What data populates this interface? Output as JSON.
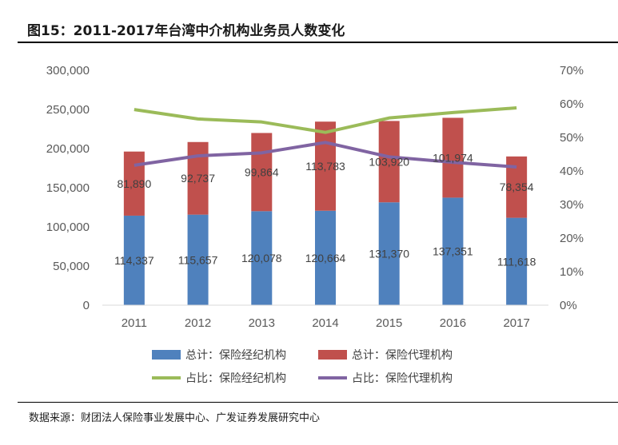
{
  "title": "图15：2011-2017年台湾中介机构业务员人数变化",
  "source": "数据来源：财团法人保险事业发展中心、广发证券发展研究中心",
  "chart_data": {
    "type": "bar+line",
    "categories": [
      "2011",
      "2012",
      "2013",
      "2014",
      "2015",
      "2016",
      "2017"
    ],
    "bar_series": [
      {
        "name": "总计：保险经纪机构",
        "color": "#4f81bd",
        "values": [
          114337,
          115657,
          120078,
          120664,
          131370,
          137351,
          111618
        ],
        "labels": [
          "114,337",
          "115,657",
          "120,078",
          "120,664",
          "131,370",
          "137,351",
          "111,618"
        ]
      },
      {
        "name": "总计：保险代理机构",
        "color": "#c0504d",
        "values": [
          81890,
          92737,
          99864,
          113783,
          103920,
          101974,
          78354
        ],
        "labels": [
          "81,890",
          "92,737",
          "99,864",
          "113,783",
          "103,920",
          "101,974",
          "78,354"
        ]
      }
    ],
    "line_series": [
      {
        "name": "占比：保险经纪机构",
        "color": "#9bbb59",
        "values": [
          58.3,
          55.5,
          54.6,
          51.5,
          55.8,
          57.4,
          58.8
        ]
      },
      {
        "name": "占比：保险代理机构",
        "color": "#8064a2",
        "values": [
          41.7,
          44.5,
          45.4,
          48.5,
          44.2,
          42.6,
          41.2
        ]
      }
    ],
    "stacked": true,
    "y_left": {
      "min": 0,
      "max": 300000,
      "ticks": [
        "0",
        "50,000",
        "100,000",
        "150,000",
        "200,000",
        "250,000",
        "300,000"
      ]
    },
    "y_right": {
      "min": 0,
      "max": 70,
      "ticks": [
        "0%",
        "10%",
        "20%",
        "30%",
        "40%",
        "50%",
        "60%",
        "70%"
      ]
    },
    "grid": false,
    "legend_position": "bottom"
  }
}
